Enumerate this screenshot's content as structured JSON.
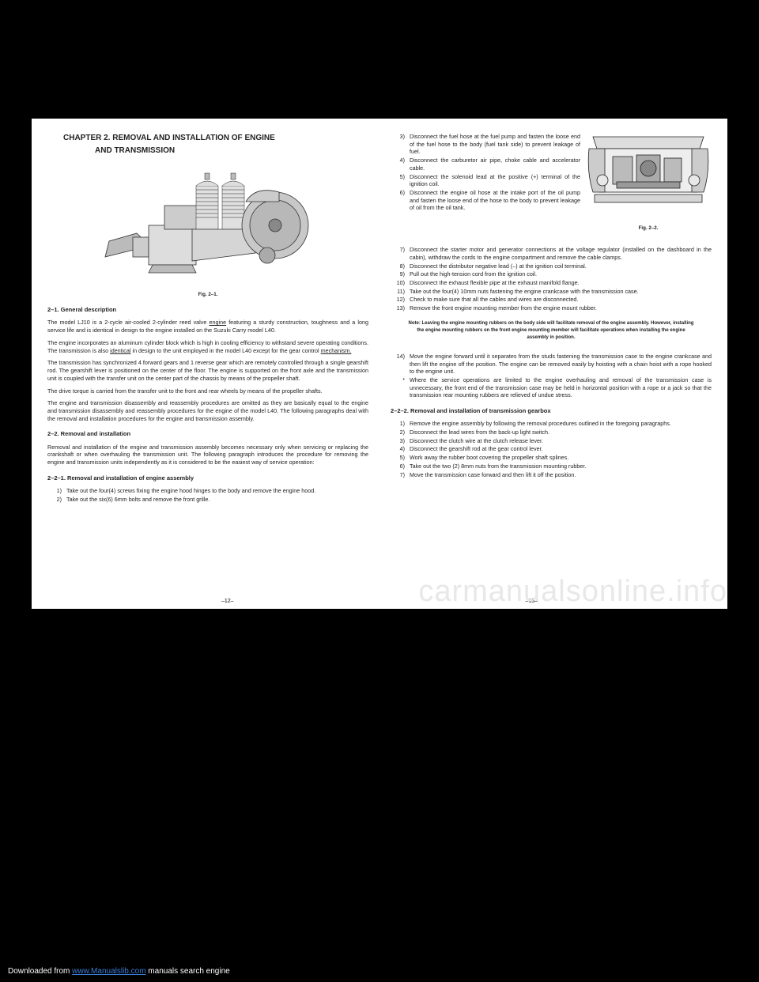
{
  "chapter_title": "CHAPTER 2. REMOVAL AND INSTALLATION OF ENGINE",
  "chapter_sub": "AND TRANSMISSION",
  "fig1_caption": "Fig. 2–1.",
  "fig2_caption": "Fig. 2–2.",
  "sec_2_1_heading": "2–1.    General description",
  "sec_2_1_p1a": "The model LJ10 is a 2-cycle air-cooled 2-cylinder reed valve ",
  "sec_2_1_p1_u1": "engine",
  "sec_2_1_p1b": " featuring a sturdy construction, toughness and a long service life and is identical in design to the engine installed on the Suzuki Carry model L40.",
  "sec_2_1_p2a": "The engine incorporates an aluminum cylinder block which is high in cooling efficiency to withstand severe operating conditions. The transmission is also ",
  "sec_2_1_p2_u1": "identical",
  "sec_2_1_p2b": " in design to the unit employed in the model L40 except for the gear control ",
  "sec_2_1_p2_u2": "mechanism.",
  "sec_2_1_p3": "The transmission has synchronized 4 forward gears and 1 reverse gear which are remotely controlled through a single gearshift rod. The gearshift lever is positioned on the center of the floor. The engine is supported on the front axle and the transmission unit is coupled with the transfer unit on the center part of the chassis by means of the propeller shaft.",
  "sec_2_1_p4": "The drive torque is carried from the transfer unit to the front and rear wheels by means of the propeller shafts.",
  "sec_2_1_p5": "The engine and transmission disassembly and reassembly procedures are omitted as they are basically equal to the engine and transmission disassembly and reassembly procedures for the engine of the model L40. The following paragraphs deal with the removal and installation procedures for the engine and transmission assembly.",
  "sec_2_2_heading": "2–2.    Removal and installation",
  "sec_2_2_p1": "Removal and installation of the engine and transmission assembly becomes necessary only when servicing or replacing the crankshaft or when overhauling the transmission unit. The following paragraph introduces the procedure for removing the engine and transmission units independently as it is considered to be the easiest way of service operation:",
  "sec_2_2_1_heading": "2–2–1.    Removal and installation of engine assembly",
  "steps_left": [
    {
      "n": "1)",
      "t": "Take out the four(4) screws fixing the engine hood hinges to the body and remove the engine hood."
    },
    {
      "n": "2)",
      "t": "Take out the six(6) 6mm bolts and remove the front grille."
    }
  ],
  "steps_right_top": [
    {
      "n": "3)",
      "t": "Disconnect the fuel hose at the fuel pump and fasten the loose end of the fuel hose to the body (fuel tank side) to prevent leakage of fuel."
    },
    {
      "n": "4)",
      "t": "Disconnect the carburetor air pipe, choke cable and accelerator cable."
    },
    {
      "n": "5)",
      "t": "Disconnect the solenoid lead at the positive (+) terminal of the ignition coil."
    },
    {
      "n": "6)",
      "t": "Disconnect the engine oil hose at the intake port of the oil pump and fasten the loose end of the hose to the body to prevent leakage of oil from the oil tank."
    }
  ],
  "steps_right_full": [
    {
      "n": "7)",
      "t": "Disconnect the starter motor and generator connections at the voltage regulator (installed on the dashboard in the cabin), withdraw the cords to the engine compartment and remove the cable clamps."
    },
    {
      "n": "8)",
      "t": "Disconnect the distributor negative lead (–) at the ignition coil terminal."
    },
    {
      "n": "9)",
      "t": "Pull out the high-tension cord from the ignition coil."
    },
    {
      "n": "10)",
      "t": "Disconnect the exhaust flexible pipe at the exhaust manifold flange."
    },
    {
      "n": "11)",
      "t": "Take out the four(4) 10mm nuts fastening the engine crankcase with the transmission case."
    },
    {
      "n": "12)",
      "t": "Check to make sure that all the cables and wires are disconnected."
    },
    {
      "n": "13)",
      "t": "Remove the front engine mounting member from the engine mount rubber."
    }
  ],
  "note_text": "Note: Leaving the engine mounting rubbers on the body side will facilitate removal of the engine assembly. However, installing the engine mounting rubbers on the front engine mounting member will facilitate operations when installing the engine assembly in position.",
  "step14": {
    "n": "14)",
    "t": "Move the engine forward until it separates from the studs fastening the transmission case to the engine crankcase and then lift the engine off the position. The engine can be removed easily by hoisting with a chain hoist with a rope hooked to the engine unit."
  },
  "step14_bullet": {
    "n": "*",
    "t": "Where the service operations are limited to the engine overhauling and removal of the transmission case is unnecessary, the front end of the transmission case may be held in horizontal position with a rope or a jack so that the transmission rear mounting rubbers are relieved of undue stress."
  },
  "sec_2_2_2_heading": "2–2–2.    Removal and installation of transmission gearbox",
  "steps_gearbox": [
    {
      "n": "1)",
      "t": "Remove the engine assembly by following the removal procedures outlined in the foregoing paragraphs."
    },
    {
      "n": "2)",
      "t": "Disconnect the lead wires from the back-up light switch."
    },
    {
      "n": "3)",
      "t": "Disconnect the clutch wire at the clutch release lever."
    },
    {
      "n": "4)",
      "t": "Disconnect the gearshift rod at the gear control lever."
    },
    {
      "n": "5)",
      "t": "Work away the rubber boot covering the propeller shaft splines."
    },
    {
      "n": "6)",
      "t": "Take out the two (2) 8mm nuts from the transmission mounting rubber."
    },
    {
      "n": "7)",
      "t": "Move the transmission case forward and then lift it off the position."
    }
  ],
  "page_num_left": "–12–",
  "page_num_right": "–13–",
  "watermark": "carmanualsonline.info",
  "download_prefix": "Downloaded from ",
  "download_link": "www.Manualslib.com",
  "download_suffix": " manuals search engine"
}
